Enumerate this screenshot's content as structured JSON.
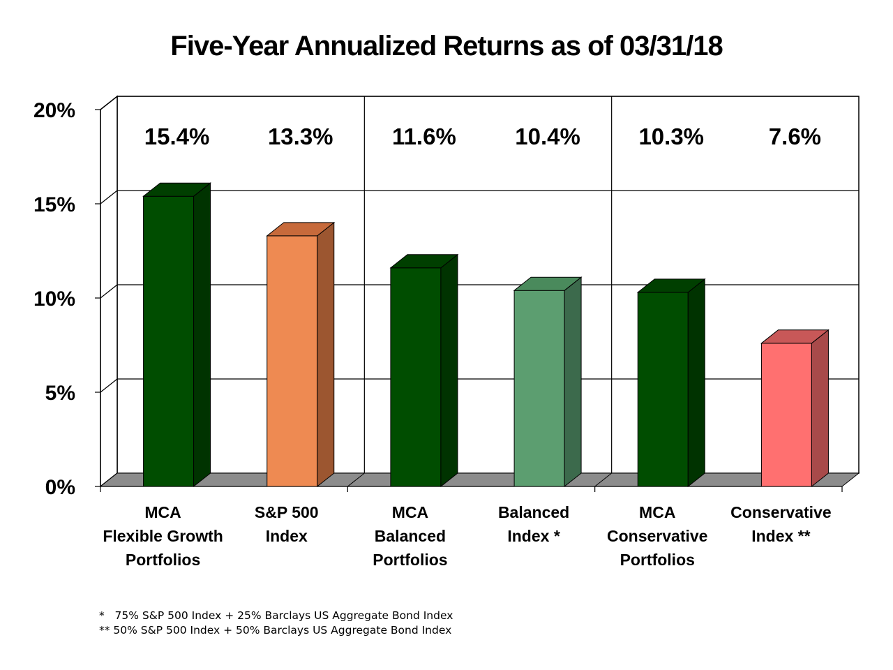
{
  "chart_data": {
    "type": "bar",
    "title": "Five-Year Annualized Returns as of 03/31/18",
    "categories": [
      [
        "MCA",
        "Flexible Growth",
        "Portfolios"
      ],
      [
        "S&P 500",
        "Index"
      ],
      [
        "MCA",
        "Balanced",
        "Portfolios"
      ],
      [
        "Balanced",
        "Index *"
      ],
      [
        "MCA",
        "Conservative",
        "Portfolios"
      ],
      [
        "Conservative",
        "Index **"
      ]
    ],
    "values": [
      15.4,
      13.3,
      11.6,
      10.4,
      10.3,
      7.6
    ],
    "value_labels": [
      "15.4%",
      "13.3%",
      "11.6%",
      "10.4%",
      "10.3%",
      "7.6%"
    ],
    "bar_colors": [
      "#004d00",
      "#ee8a52",
      "#004d00",
      "#5c9e70",
      "#004d00",
      "#ff7070"
    ],
    "bar_side_colors": [
      "#003300",
      "#9c5630",
      "#003300",
      "#3c6a4c",
      "#003300",
      "#a84a4a"
    ],
    "bar_top_colors": [
      "#003f00",
      "#c76a3b",
      "#003f00",
      "#4a8a5c",
      "#003f00",
      "#c85858"
    ],
    "ylim": [
      0,
      20
    ],
    "yticks": [
      0,
      5,
      10,
      15,
      20
    ],
    "ytick_labels": [
      "0%",
      "5%",
      "10%",
      "15%",
      "20%"
    ],
    "xlabel": "",
    "ylabel": "",
    "grid": true,
    "three_d": true,
    "floor_color": "#8c8c8c"
  },
  "footnotes": [
    "*   75% S&P 500 Index + 25% Barclays US Aggregate Bond Index",
    "** 50% S&P 500 Index + 50% Barclays US Aggregate Bond Index"
  ]
}
